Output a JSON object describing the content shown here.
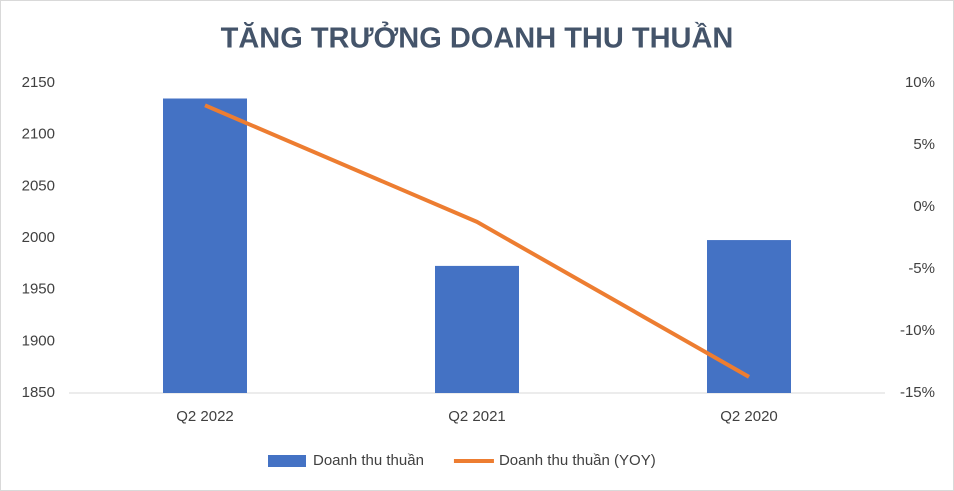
{
  "chart_data": {
    "type": "bar-line",
    "title": "TĂNG TRƯỞNG DOANH THU THUẦN",
    "categories": [
      "Q2 2022",
      "Q2 2021",
      "Q2 2020"
    ],
    "series": [
      {
        "name": "Doanh thu thuần",
        "type": "bar",
        "color": "#4472c4",
        "values": [
          2135,
          1973,
          1998
        ]
      },
      {
        "name": "Doanh thu thuần (YOY)",
        "type": "line",
        "axis": "y2",
        "color": "#ed7d31",
        "values": [
          8.2,
          -1.2,
          -13.7
        ]
      }
    ],
    "ylim": [
      1850,
      2150
    ],
    "yticks": [
      1850,
      1900,
      1950,
      2000,
      2050,
      2100,
      2150
    ],
    "y2lim": [
      -15,
      10
    ],
    "y2ticks": [
      {
        "value": -15,
        "label": "-15%"
      },
      {
        "value": -10,
        "label": "-10%"
      },
      {
        "value": -5,
        "label": "-5%"
      },
      {
        "value": 0,
        "label": "0%"
      },
      {
        "value": 5,
        "label": "5%"
      },
      {
        "value": 10,
        "label": "10%"
      }
    ],
    "grid": false,
    "legend": "bottom"
  }
}
